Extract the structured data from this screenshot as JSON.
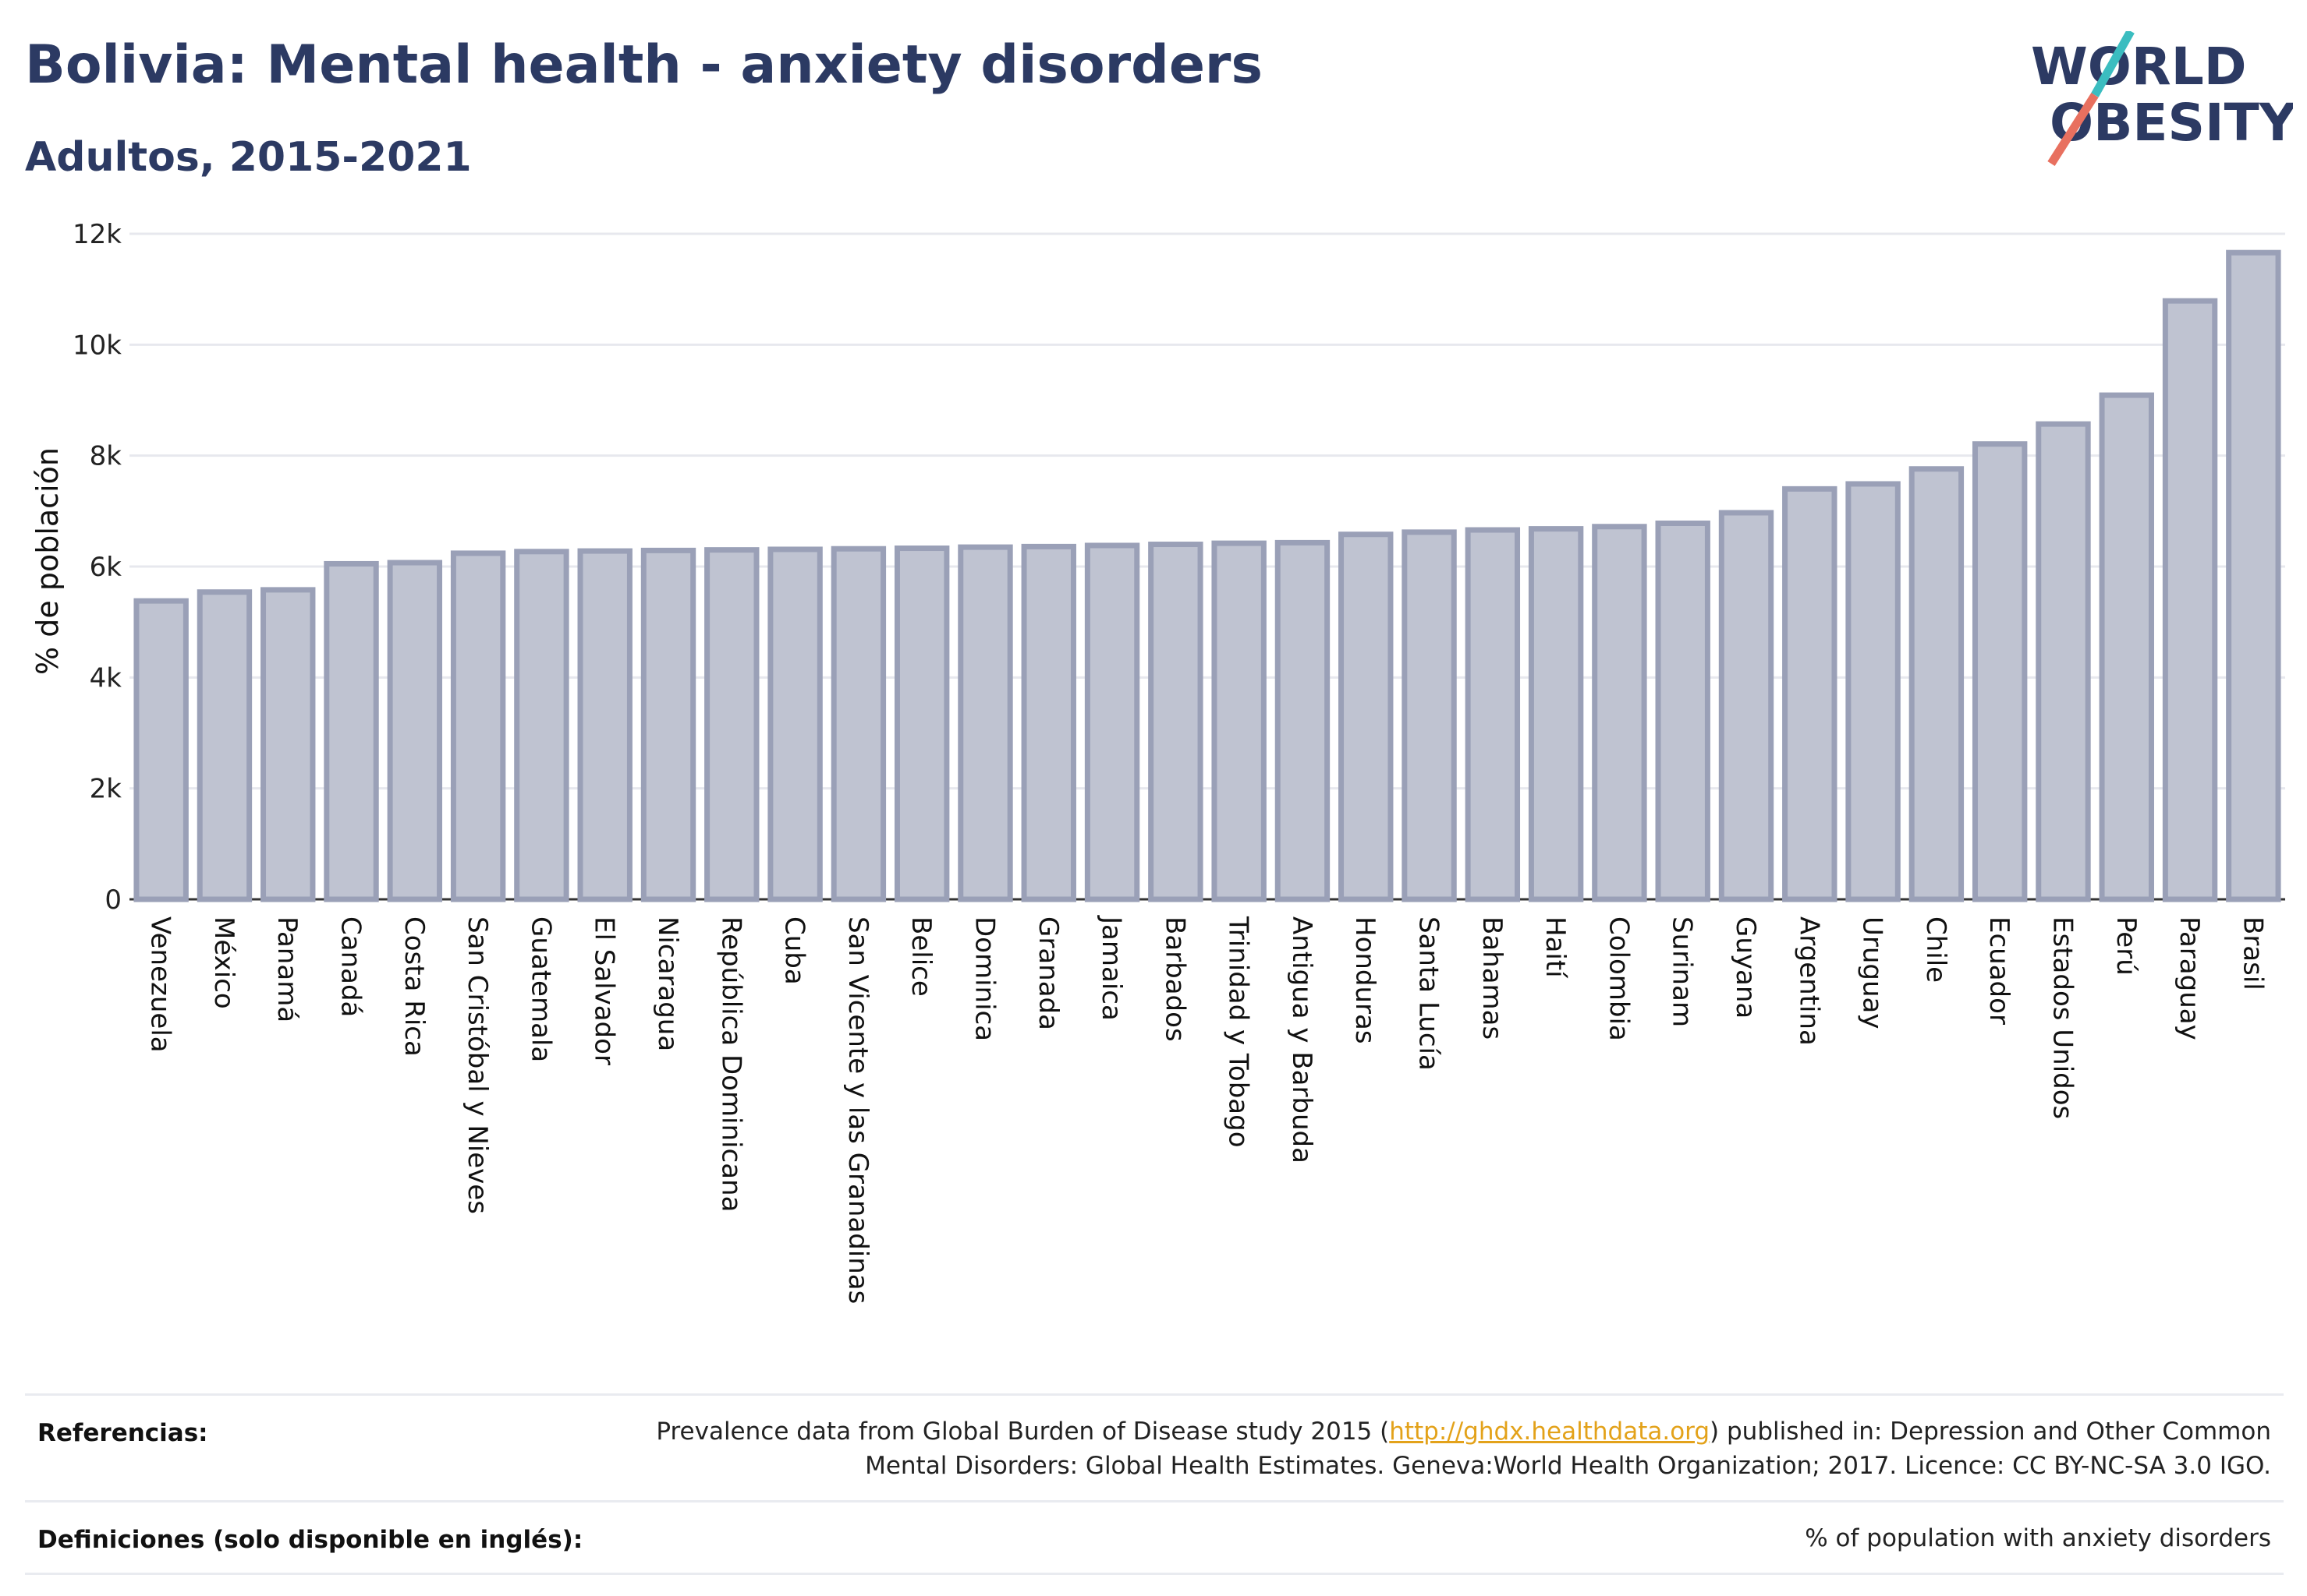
{
  "header": {
    "title": "Bolivia: Mental health - anxiety disorders",
    "subtitle": "Adultos, 2015-2021"
  },
  "logo": {
    "line1": "WORLD",
    "line2": "OBESITY",
    "colors": {
      "text": "#2c3a63",
      "slash_top": "#3bbdc0",
      "slash_bottom": "#e8705f"
    }
  },
  "chart_data": {
    "type": "bar",
    "ylabel": "% de población",
    "ylim": [
      0,
      12000
    ],
    "yticks": [
      0,
      2000,
      4000,
      6000,
      8000,
      10000,
      12000
    ],
    "ytick_labels": [
      "0",
      "2k",
      "4k",
      "6k",
      "8k",
      "10k",
      "12k"
    ],
    "grid": true,
    "categories": [
      "Venezuela",
      "México",
      "Panamá",
      "Canadá",
      "Costa Rica",
      "San Cristóbal y Nieves",
      "Guatemala",
      "El Salvador",
      "Nicaragua",
      "República Dominicana",
      "Cuba",
      "San Vicente y las Granadinas",
      "Belice",
      "Dominica",
      "Granada",
      "Jamaica",
      "Barbados",
      "Trinidad y Tobago",
      "Antigua y Barbuda",
      "Honduras",
      "Santa Lucía",
      "Bahamas",
      "Haití",
      "Colombia",
      "Surinam",
      "Guyana",
      "Argentina",
      "Uruguay",
      "Chile",
      "Ecuador",
      "Estados Unidos",
      "Perú",
      "Paraguay",
      "Brasil"
    ],
    "values": [
      5380,
      5540,
      5580,
      6050,
      6070,
      6240,
      6270,
      6280,
      6290,
      6300,
      6310,
      6320,
      6330,
      6350,
      6360,
      6380,
      6400,
      6420,
      6430,
      6580,
      6620,
      6660,
      6680,
      6720,
      6780,
      6970,
      7400,
      7490,
      7760,
      8210,
      8570,
      9090,
      10790,
      11660
    ],
    "colors": {
      "bar_fill": "#bfc3d1",
      "bar_stroke": "#9aa0b7"
    }
  },
  "footer": {
    "references_label": "Referencias:",
    "references_text_before": "Prevalence data from Global Burden of Disease study 2015 (",
    "references_link": "http://ghdx.healthdata.org",
    "references_text_after": ") published in: Depression and Other Common Mental Disorders: Global Health Estimates. Geneva:World Health Organization; 2017. Licence: CC BY-NC-SA 3.0 IGO.",
    "definitions_label": "Definiciones (solo disponible en inglés):",
    "definitions_text": "% of population with anxiety disorders"
  }
}
